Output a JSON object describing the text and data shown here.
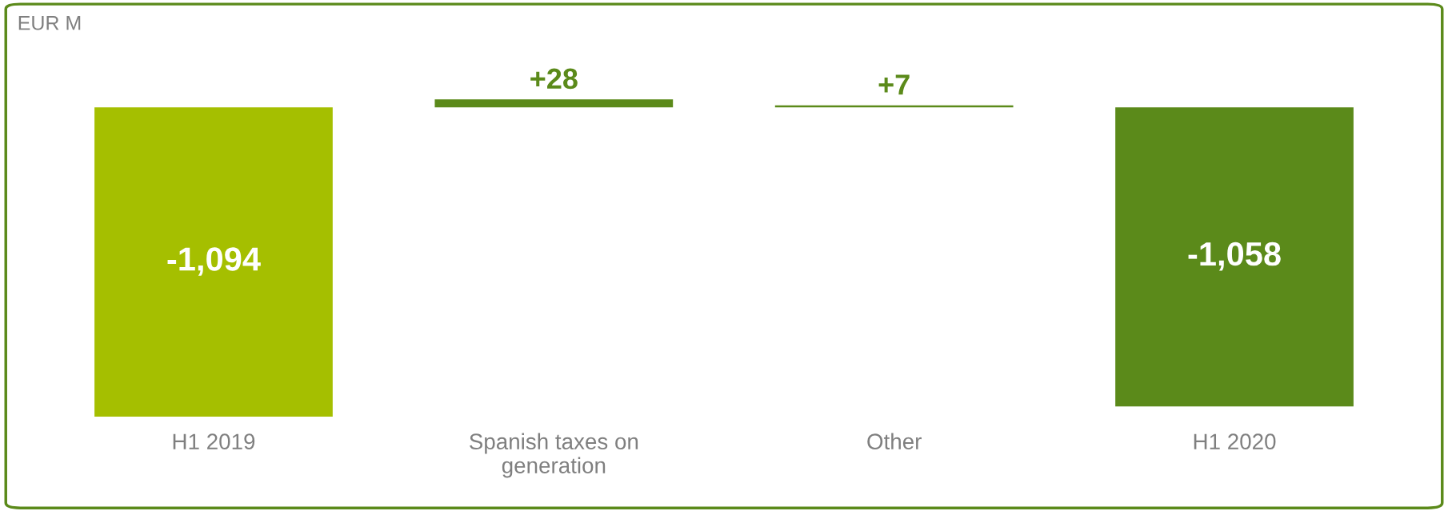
{
  "chart_data": {
    "type": "bar",
    "ylabel": "EUR M",
    "categories": [
      "H1 2019",
      "Spanish taxes on\ngeneration",
      "Other",
      "H1 2020"
    ],
    "values": [
      -1094,
      28,
      7,
      -1058
    ],
    "colors": [
      "#a5bf00",
      "#5b8a1a",
      "#5b8a1a",
      "#5b8a1a"
    ],
    "value_labels": [
      "-1,094",
      "+28",
      "+7",
      "-1,058"
    ],
    "grid": false,
    "legend": false,
    "tick_labels": "x"
  }
}
